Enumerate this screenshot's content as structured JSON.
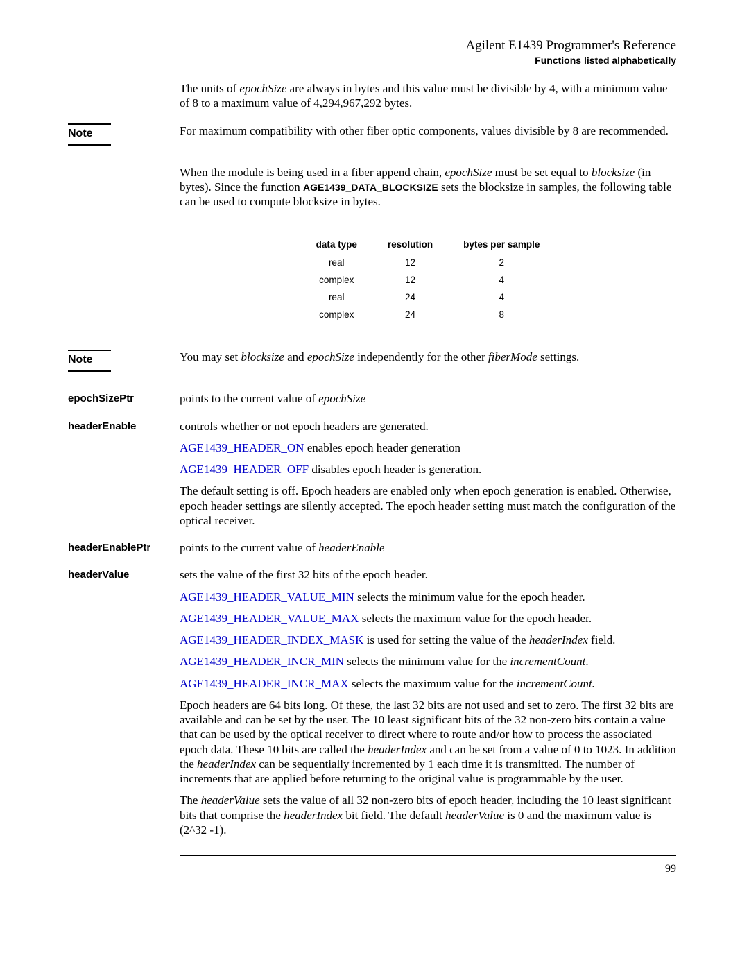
{
  "header": {
    "title": "Agilent E1439 Programmer's Reference",
    "subtitle": "Functions listed alphabetically"
  },
  "para1_a": "The units of ",
  "para1_b": "epochSize",
  "para1_c": " are always in bytes and this value must be divisible by 4, with a minimum value of 8 to a maximum value of 4,294,967,292 bytes.",
  "note1_label": "Note",
  "note1_text": "For maximum compatibility with other fiber optic components, values divisible by 8 are recommended.",
  "para2_a": "When the module is being used in a fiber append chain, ",
  "para2_b": "epochSize",
  "para2_c": " must be set equal to ",
  "para2_d": "blocksize",
  "para2_e": " (in bytes). Since the function ",
  "para2_f": "AGE1439_DATA_BLOCKSIZE",
  "para2_g": " sets the blocksize in samples, the following table can be used to compute blocksize in bytes.",
  "table": {
    "headers": [
      "data type",
      "resolution",
      "bytes per sample"
    ],
    "rows": [
      [
        "real",
        "12",
        "2"
      ],
      [
        "complex",
        "12",
        "4"
      ],
      [
        "real",
        "24",
        "4"
      ],
      [
        "complex",
        "24",
        "8"
      ]
    ]
  },
  "note2_label": "Note",
  "note2_a": "You may set ",
  "note2_b": "blocksize",
  "note2_c": " and ",
  "note2_d": "epochSize",
  "note2_e": " independently for the other ",
  "note2_f": "fiberMode",
  "note2_g": " settings.",
  "epochSizePtr": {
    "label": "epochSizePtr",
    "text_a": "points to the current value of ",
    "text_b": "epochSize"
  },
  "headerEnable": {
    "label": "headerEnable",
    "text1": "controls whether or not epoch headers are generated.",
    "link1": "AGE1439_HEADER_ON",
    "link1_after": " enables epoch header generation",
    "link2": "AGE1439_HEADER_OFF",
    "link2_after": " disables epoch header is generation.",
    "text2": "The default setting is off. Epoch headers are enabled only when epoch generation is enabled. Otherwise, epoch header settings are silently accepted. The epoch header setting must match the configuration of the optical receiver."
  },
  "headerEnablePtr": {
    "label": "headerEnablePtr",
    "text_a": "points to the current value of ",
    "text_b": "headerEnable"
  },
  "headerValue": {
    "label": "headerValue",
    "text1": "sets the value of the first 32 bits of the epoch header.",
    "link1": "AGE1439_HEADER_VALUE_MIN",
    "link1_after": " selects the minimum value for the epoch header.",
    "link2": "AGE1439_HEADER_VALUE_MAX",
    "link2_after": " selects the maximum value for the epoch header.",
    "link3": "AGE1439_HEADER_INDEX_MASK",
    "link3_after_a": " is used for setting the value of the ",
    "link3_after_b": "headerIndex",
    "link3_after_c": " field.",
    "link4": "AGE1439_HEADER_INCR_MIN",
    "link4_after_a": " selects the minimum value for the ",
    "link4_after_b": "incrementCount",
    "link4_after_c": ".",
    "link5": "AGE1439_HEADER_INCR_MAX",
    "link5_after_a": " selects the maximum value for the ",
    "link5_after_b": "incrementCount.",
    "text2_a": "Epoch headers are 64 bits long. Of these, the last 32 bits are not used and set to zero. The first 32 bits are available and can be set by the user. The 10 least significant bits of the 32 non-zero bits contain a value that can be used by the optical receiver to direct where to route and/or how to process the associated epoch data. These 10 bits are called the ",
    "text2_b": "headerIndex",
    "text2_c": " and can be set from a value of 0 to 1023.   In addition the ",
    "text2_d": "headerIndex",
    "text2_e": " can be sequentially incremented by 1 each time it is transmitted. The number of increments that are applied before returning to the original value is programmable by the user.",
    "text3_a": "The ",
    "text3_b": "headerValue",
    "text3_c": " sets the value of all 32 non-zero bits of epoch header, including the 10 least significant bits that comprise the ",
    "text3_d": "headerIndex",
    "text3_e": " bit field. The default ",
    "text3_f": "headerValue",
    "text3_g": " is 0 and the maximum value is (2^32 -1)."
  },
  "page_number": "99"
}
